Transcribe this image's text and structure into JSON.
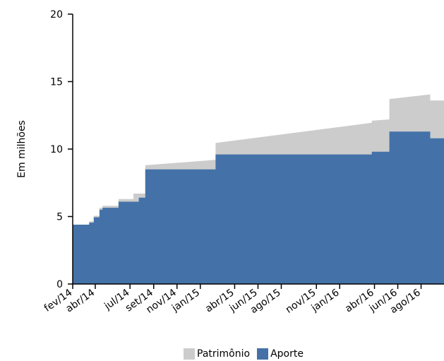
{
  "chart_data": {
    "type": "area",
    "ylabel": "Em milhões",
    "ylim": [
      0,
      20
    ],
    "yticks": [
      0,
      5,
      10,
      15,
      20
    ],
    "xlim": [
      "2014-02-01",
      "2016-09-30"
    ],
    "xticks": [
      {
        "date": "2014-02-01",
        "label": "fev/14"
      },
      {
        "date": "2014-04-01",
        "label": "abr/14"
      },
      {
        "date": "2014-07-01",
        "label": "jul/14"
      },
      {
        "date": "2014-09-01",
        "label": "set/14"
      },
      {
        "date": "2014-11-01",
        "label": "nov/14"
      },
      {
        "date": "2015-01-01",
        "label": "jan/15"
      },
      {
        "date": "2015-04-01",
        "label": "abr/15"
      },
      {
        "date": "2015-06-01",
        "label": "jun/15"
      },
      {
        "date": "2015-08-01",
        "label": "ago/15"
      },
      {
        "date": "2015-11-01",
        "label": "nov/15"
      },
      {
        "date": "2016-01-01",
        "label": "jan/16"
      },
      {
        "date": "2016-04-01",
        "label": "abr/16"
      },
      {
        "date": "2016-06-01",
        "label": "jun/16"
      },
      {
        "date": "2016-08-01",
        "label": "ago/16"
      }
    ],
    "grid": false,
    "legend_position": "bottom",
    "series": [
      {
        "name": "Patrimônio",
        "color": "#cccccc",
        "points": [
          [
            "2014-02-01",
            4.4
          ],
          [
            "2014-03-16",
            4.4
          ],
          [
            "2014-03-16",
            4.65
          ],
          [
            "2014-03-28",
            4.65
          ],
          [
            "2014-03-28",
            5.05
          ],
          [
            "2014-04-12",
            5.05
          ],
          [
            "2014-04-12",
            5.65
          ],
          [
            "2014-04-20",
            5.65
          ],
          [
            "2014-04-20",
            5.8
          ],
          [
            "2014-06-01",
            5.8
          ],
          [
            "2014-06-01",
            6.3
          ],
          [
            "2014-07-10",
            6.3
          ],
          [
            "2014-07-10",
            6.7
          ],
          [
            "2014-08-10",
            6.7
          ],
          [
            "2014-08-10",
            8.8
          ],
          [
            "2015-02-10",
            9.2
          ],
          [
            "2015-02-10",
            10.45
          ],
          [
            "2016-03-25",
            11.95
          ],
          [
            "2016-03-25",
            12.1
          ],
          [
            "2016-05-10",
            12.2
          ],
          [
            "2016-05-10",
            13.7
          ],
          [
            "2016-08-25",
            14.05
          ],
          [
            "2016-08-25",
            13.6
          ],
          [
            "2016-09-30",
            13.6
          ]
        ]
      },
      {
        "name": "Aporte",
        "color": "#4472a8",
        "points": [
          [
            "2014-02-01",
            4.4
          ],
          [
            "2014-03-16",
            4.4
          ],
          [
            "2014-03-16",
            4.55
          ],
          [
            "2014-03-28",
            4.55
          ],
          [
            "2014-03-28",
            4.95
          ],
          [
            "2014-04-12",
            4.95
          ],
          [
            "2014-04-12",
            5.5
          ],
          [
            "2014-04-20",
            5.5
          ],
          [
            "2014-04-20",
            5.65
          ],
          [
            "2014-06-01",
            5.65
          ],
          [
            "2014-06-01",
            6.1
          ],
          [
            "2014-07-24",
            6.1
          ],
          [
            "2014-07-24",
            6.4
          ],
          [
            "2014-08-10",
            6.4
          ],
          [
            "2014-08-10",
            8.5
          ],
          [
            "2015-02-10",
            8.5
          ],
          [
            "2015-02-10",
            9.6
          ],
          [
            "2016-03-25",
            9.6
          ],
          [
            "2016-03-25",
            9.8
          ],
          [
            "2016-05-10",
            9.8
          ],
          [
            "2016-05-10",
            11.3
          ],
          [
            "2016-08-25",
            11.3
          ],
          [
            "2016-08-25",
            10.8
          ],
          [
            "2016-09-30",
            10.8
          ]
        ]
      }
    ]
  }
}
